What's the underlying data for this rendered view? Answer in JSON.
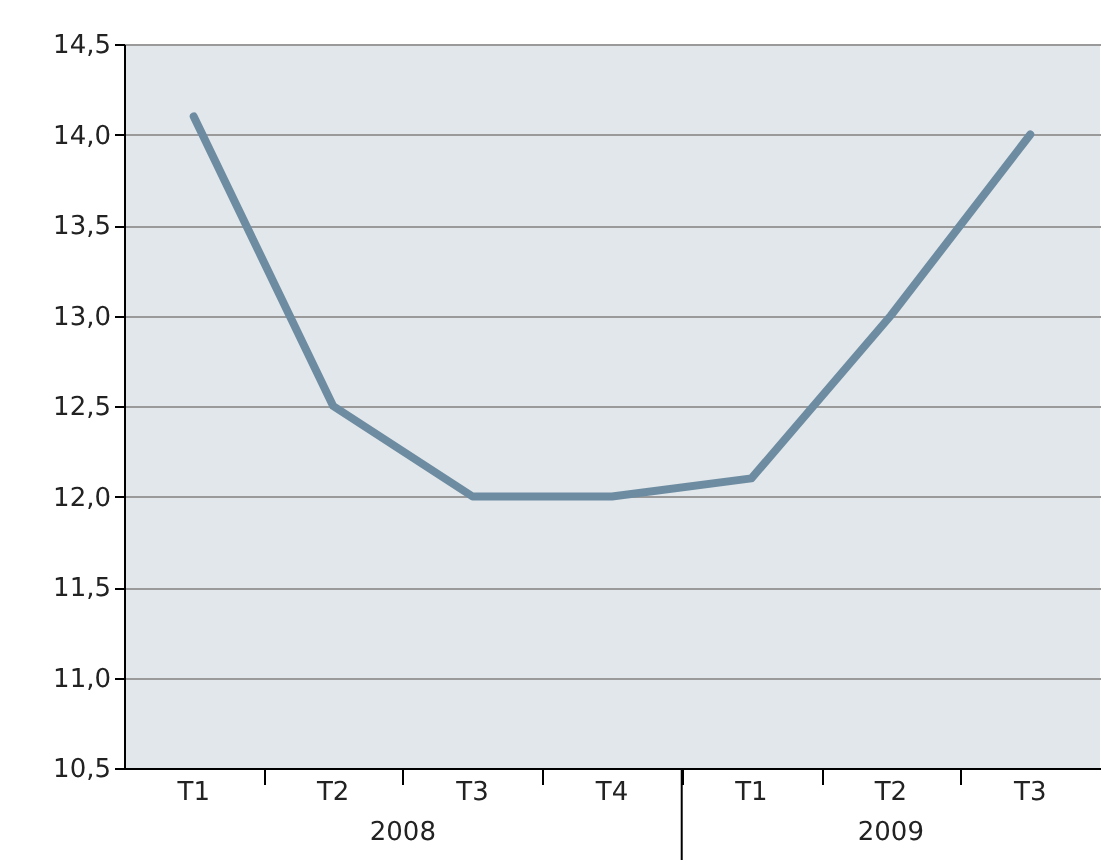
{
  "chart_data": {
    "type": "line",
    "categories": [
      "T1",
      "T2",
      "T3",
      "T4",
      "T1",
      "T2",
      "T3"
    ],
    "series": [
      {
        "color": "#6e8ca1",
        "values": [
          14.1,
          12.5,
          12.0,
          12.0,
          12.1,
          13.0,
          14.0
        ]
      }
    ],
    "ylim": [
      10.5,
      14.5
    ],
    "yticks": [
      {
        "value": 10.5,
        "label": "10,5"
      },
      {
        "value": 11.0,
        "label": "11,0"
      },
      {
        "value": 11.5,
        "label": "11,5"
      },
      {
        "value": 12.0,
        "label": "12,0"
      },
      {
        "value": 12.5,
        "label": "12,5"
      },
      {
        "value": 13.0,
        "label": "13,0"
      },
      {
        "value": 13.5,
        "label": "13,5"
      },
      {
        "value": 14.0,
        "label": "14,0"
      },
      {
        "value": 14.5,
        "label": "14,5"
      }
    ],
    "annotations": [
      "2008",
      "2009"
    ],
    "grid": "y",
    "marker": "none",
    "line_style": "solid"
  }
}
